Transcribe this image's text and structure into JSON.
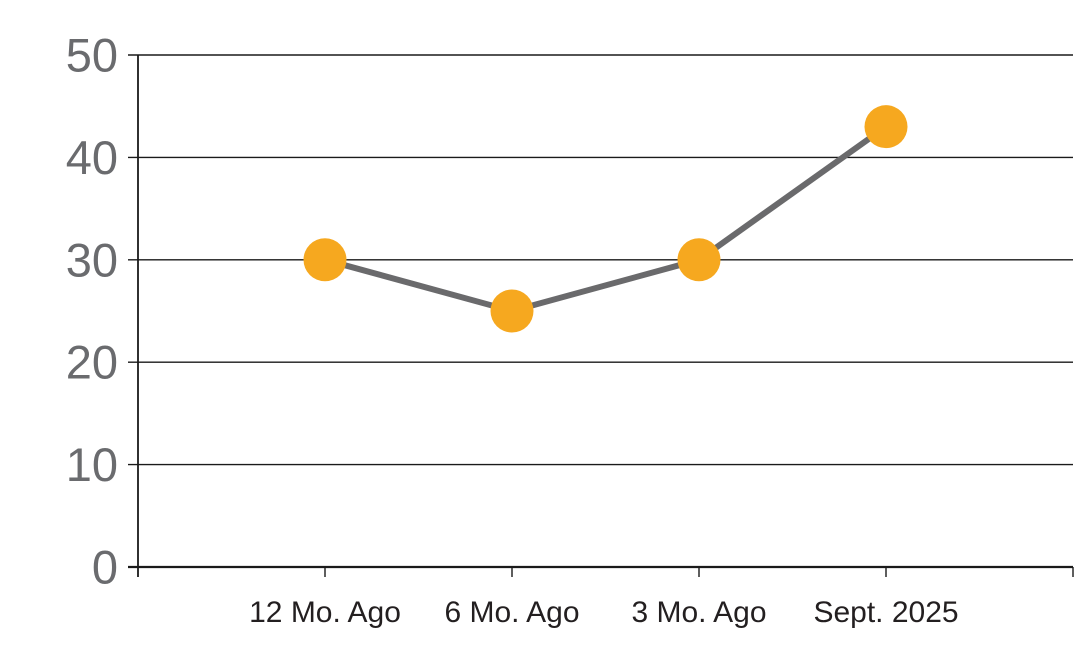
{
  "chart_data": {
    "type": "line",
    "categories": [
      "12 Mo. Ago",
      "6 Mo. Ago",
      "3 Mo. Ago",
      "Sept. 2025"
    ],
    "values": [
      30,
      25,
      30,
      43
    ],
    "series": [
      {
        "name": "series-1",
        "values": [
          30,
          25,
          30,
          43
        ]
      }
    ],
    "title": "",
    "xlabel": "",
    "ylabel": "",
    "ylim": [
      0,
      50
    ],
    "yticks": [
      0,
      10,
      20,
      30,
      40,
      50
    ],
    "grid": true,
    "legend": false,
    "colors": {
      "marker": "#F6A81F",
      "line": "#6A6A6C",
      "grid": "#1A1A1A",
      "axis": "#1A1A1A",
      "y_tick_label": "#6A6B6E",
      "x_tick_label": "#231F20",
      "background": "#FFFFFF"
    }
  }
}
